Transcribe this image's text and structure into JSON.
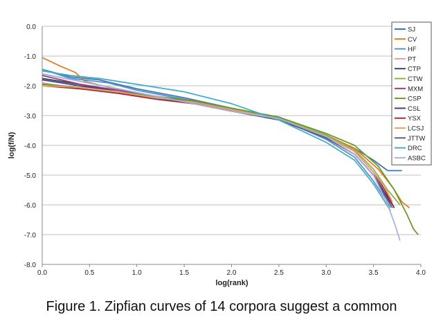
{
  "chart_data": {
    "type": "line",
    "title": "",
    "xlabel": "log(rank)",
    "ylabel": "log(f/N)",
    "xlim": [
      0.0,
      4.0
    ],
    "ylim": [
      -8.0,
      0.0
    ],
    "x_ticks": [
      "0.0",
      "0.5",
      "1.0",
      "1.5",
      "2.0",
      "2.5",
      "3.0",
      "3.5",
      "4.0"
    ],
    "y_ticks": [
      "0.0",
      "-1.0",
      "-2.0",
      "-3.0",
      "-4.0",
      "-5.0",
      "-6.0",
      "-7.0",
      "-8.0"
    ],
    "grid": "horizontal",
    "legend_position": "top-right",
    "series": [
      {
        "name": "SJ",
        "color": "#3a78b4",
        "points": [
          [
            0.0,
            -1.45
          ],
          [
            0.3,
            -1.7
          ],
          [
            0.6,
            -1.8
          ],
          [
            1.0,
            -2.1
          ],
          [
            1.5,
            -2.4
          ],
          [
            2.0,
            -2.75
          ],
          [
            2.5,
            -3.05
          ],
          [
            3.0,
            -3.7
          ],
          [
            3.3,
            -4.1
          ],
          [
            3.5,
            -4.5
          ],
          [
            3.65,
            -4.85
          ],
          [
            3.8,
            -4.85
          ]
        ]
      },
      {
        "name": "CV",
        "color": "#e07b2a",
        "points": [
          [
            0.0,
            -1.05
          ],
          [
            0.2,
            -1.35
          ],
          [
            0.35,
            -1.55
          ],
          [
            0.45,
            -1.85
          ],
          [
            0.7,
            -2.05
          ],
          [
            1.0,
            -2.25
          ],
          [
            1.5,
            -2.5
          ],
          [
            2.0,
            -2.8
          ],
          [
            2.5,
            -3.1
          ],
          [
            3.0,
            -3.65
          ],
          [
            3.3,
            -4.1
          ],
          [
            3.55,
            -4.8
          ],
          [
            3.7,
            -5.4
          ],
          [
            3.8,
            -5.9
          ],
          [
            3.88,
            -6.1
          ]
        ]
      },
      {
        "name": "HF",
        "color": "#5b8fc8",
        "points": [
          [
            0.0,
            -1.45
          ],
          [
            0.3,
            -1.75
          ],
          [
            0.7,
            -1.9
          ],
          [
            1.0,
            -2.15
          ],
          [
            1.5,
            -2.45
          ],
          [
            2.0,
            -2.8
          ],
          [
            2.5,
            -3.1
          ],
          [
            3.0,
            -3.8
          ],
          [
            3.3,
            -4.4
          ],
          [
            3.5,
            -5.2
          ],
          [
            3.62,
            -5.8
          ],
          [
            3.68,
            -6.1
          ]
        ]
      },
      {
        "name": "PT",
        "color": "#e39a9a",
        "points": [
          [
            0.0,
            -1.9
          ],
          [
            0.4,
            -2.1
          ],
          [
            0.8,
            -2.25
          ],
          [
            1.2,
            -2.4
          ],
          [
            1.6,
            -2.55
          ],
          [
            2.0,
            -2.8
          ],
          [
            2.5,
            -3.1
          ],
          [
            3.0,
            -3.7
          ],
          [
            3.3,
            -4.2
          ],
          [
            3.5,
            -4.9
          ],
          [
            3.62,
            -5.5
          ],
          [
            3.7,
            -6.0
          ]
        ]
      },
      {
        "name": "CTP",
        "color": "#2d4a7a",
        "points": [
          [
            0.0,
            -1.75
          ],
          [
            0.4,
            -1.95
          ],
          [
            0.8,
            -2.2
          ],
          [
            1.2,
            -2.4
          ],
          [
            1.6,
            -2.6
          ],
          [
            2.0,
            -2.85
          ],
          [
            2.5,
            -3.1
          ],
          [
            3.0,
            -3.75
          ],
          [
            3.3,
            -4.3
          ],
          [
            3.5,
            -5.0
          ],
          [
            3.62,
            -5.6
          ],
          [
            3.72,
            -6.1
          ]
        ]
      },
      {
        "name": "CTW",
        "color": "#8fb14b",
        "points": [
          [
            0.0,
            -1.95
          ],
          [
            0.4,
            -2.05
          ],
          [
            0.8,
            -2.2
          ],
          [
            1.2,
            -2.35
          ],
          [
            1.6,
            -2.55
          ],
          [
            2.0,
            -2.8
          ],
          [
            2.5,
            -3.05
          ],
          [
            3.0,
            -3.65
          ],
          [
            3.3,
            -4.15
          ],
          [
            3.5,
            -4.8
          ],
          [
            3.65,
            -5.5
          ],
          [
            3.78,
            -6.0
          ]
        ]
      },
      {
        "name": "MXM",
        "color": "#9c3b6a",
        "points": [
          [
            0.0,
            -1.65
          ],
          [
            0.4,
            -1.95
          ],
          [
            0.8,
            -2.15
          ],
          [
            1.2,
            -2.35
          ],
          [
            1.6,
            -2.55
          ],
          [
            2.0,
            -2.8
          ],
          [
            2.5,
            -3.1
          ],
          [
            3.0,
            -3.75
          ],
          [
            3.3,
            -4.3
          ],
          [
            3.5,
            -5.0
          ],
          [
            3.6,
            -5.5
          ],
          [
            3.68,
            -6.0
          ]
        ]
      },
      {
        "name": "CSP",
        "color": "#6b9a2a",
        "points": [
          [
            0.0,
            -1.95
          ],
          [
            0.4,
            -2.05
          ],
          [
            0.8,
            -2.2
          ],
          [
            1.2,
            -2.35
          ],
          [
            1.6,
            -2.5
          ],
          [
            2.0,
            -2.75
          ],
          [
            2.5,
            -3.05
          ],
          [
            3.0,
            -3.6
          ],
          [
            3.3,
            -4.0
          ],
          [
            3.55,
            -4.7
          ],
          [
            3.72,
            -5.5
          ],
          [
            3.85,
            -6.3
          ],
          [
            3.92,
            -6.8
          ],
          [
            3.97,
            -7.0
          ]
        ]
      },
      {
        "name": "CSL",
        "color": "#4e3b78",
        "points": [
          [
            0.0,
            -1.8
          ],
          [
            0.4,
            -2.0
          ],
          [
            0.8,
            -2.2
          ],
          [
            1.2,
            -2.4
          ],
          [
            1.6,
            -2.6
          ],
          [
            2.0,
            -2.85
          ],
          [
            2.5,
            -3.1
          ],
          [
            3.0,
            -3.75
          ],
          [
            3.3,
            -4.3
          ],
          [
            3.5,
            -5.0
          ],
          [
            3.62,
            -5.6
          ],
          [
            3.7,
            -6.0
          ]
        ]
      },
      {
        "name": "YSX",
        "color": "#a12f3b",
        "points": [
          [
            0.0,
            -2.0
          ],
          [
            0.4,
            -2.1
          ],
          [
            0.8,
            -2.25
          ],
          [
            1.2,
            -2.45
          ],
          [
            1.6,
            -2.6
          ],
          [
            2.0,
            -2.85
          ],
          [
            2.5,
            -3.1
          ],
          [
            3.0,
            -3.7
          ],
          [
            3.3,
            -4.2
          ],
          [
            3.5,
            -4.9
          ],
          [
            3.62,
            -5.5
          ],
          [
            3.72,
            -6.1
          ]
        ]
      },
      {
        "name": "LCSJ",
        "color": "#e8a26b",
        "points": [
          [
            0.0,
            -2.0
          ],
          [
            0.4,
            -2.05
          ],
          [
            0.8,
            -2.2
          ],
          [
            1.2,
            -2.4
          ],
          [
            1.6,
            -2.55
          ],
          [
            2.0,
            -2.8
          ],
          [
            2.5,
            -3.1
          ],
          [
            3.0,
            -3.7
          ],
          [
            3.3,
            -4.2
          ],
          [
            3.5,
            -4.9
          ],
          [
            3.62,
            -5.4
          ],
          [
            3.7,
            -5.9
          ]
        ]
      },
      {
        "name": "JTTW",
        "color": "#5a5f7a",
        "points": [
          [
            0.0,
            -1.6
          ],
          [
            0.4,
            -1.85
          ],
          [
            0.8,
            -2.1
          ],
          [
            1.2,
            -2.35
          ],
          [
            1.6,
            -2.6
          ],
          [
            2.0,
            -2.85
          ],
          [
            2.5,
            -3.15
          ],
          [
            3.0,
            -3.75
          ],
          [
            3.3,
            -4.3
          ],
          [
            3.5,
            -5.0
          ],
          [
            3.62,
            -5.7
          ],
          [
            3.7,
            -6.1
          ]
        ]
      },
      {
        "name": "DRC",
        "color": "#43aec6",
        "points": [
          [
            0.0,
            -1.5
          ],
          [
            0.3,
            -1.65
          ],
          [
            0.6,
            -1.75
          ],
          [
            1.0,
            -1.95
          ],
          [
            1.5,
            -2.2
          ],
          [
            2.0,
            -2.6
          ],
          [
            2.5,
            -3.15
          ],
          [
            3.0,
            -3.9
          ],
          [
            3.3,
            -4.5
          ],
          [
            3.5,
            -5.3
          ],
          [
            3.62,
            -5.9
          ],
          [
            3.68,
            -6.2
          ]
        ]
      },
      {
        "name": "ASBC",
        "color": "#a8b3e0",
        "points": [
          [
            0.0,
            -1.6
          ],
          [
            0.4,
            -1.85
          ],
          [
            0.8,
            -2.1
          ],
          [
            1.2,
            -2.35
          ],
          [
            1.6,
            -2.6
          ],
          [
            2.0,
            -2.85
          ],
          [
            2.5,
            -3.1
          ],
          [
            3.0,
            -3.7
          ],
          [
            3.3,
            -4.3
          ],
          [
            3.5,
            -5.0
          ],
          [
            3.65,
            -6.0
          ],
          [
            3.73,
            -6.7
          ],
          [
            3.78,
            -7.2
          ]
        ]
      }
    ]
  },
  "caption": "Figure 1.  Zipfian curves of 14 corpora suggest a common"
}
